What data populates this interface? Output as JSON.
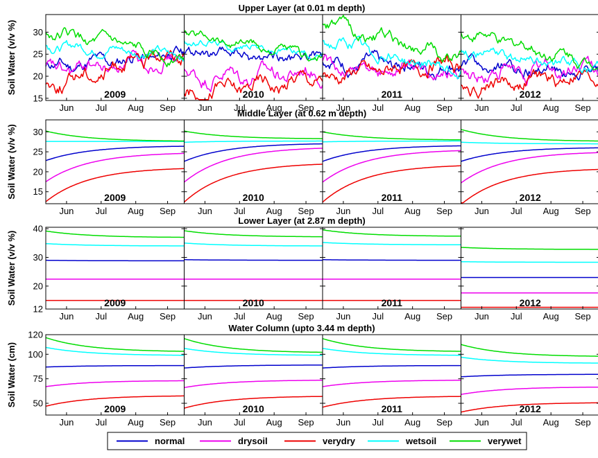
{
  "chart_data": [
    {
      "type": "line",
      "title": "Upper Layer (at 0.01 m depth)",
      "ylabel": "Soil Water (v/v %)",
      "ylim": [
        14.5,
        34
      ],
      "yticks": [
        15,
        20,
        25,
        30
      ],
      "months": [
        "Jun",
        "Jul",
        "Aug",
        "Sep"
      ],
      "panels": [
        {
          "year": "2009",
          "series": [
            {
              "name": "normal",
              "start": 22,
              "end": 25,
              "noise": 2.0
            },
            {
              "name": "drysoil",
              "start": 21,
              "end": 24,
              "noise": 2.2
            },
            {
              "name": "verydry",
              "start": 18,
              "end": 26,
              "noise": 2.5
            },
            {
              "name": "wetsoil",
              "start": 27,
              "end": 25,
              "noise": 1.5
            },
            {
              "name": "verywet",
              "start": 30,
              "end": 24,
              "noise": 1.8
            }
          ]
        },
        {
          "year": "2010",
          "series": [
            {
              "name": "normal",
              "start": 25,
              "end": 24,
              "noise": 1.8
            },
            {
              "name": "drysoil",
              "start": 20,
              "end": 21,
              "noise": 2.5
            },
            {
              "name": "verydry",
              "start": 16,
              "end": 20,
              "noise": 2.5
            },
            {
              "name": "wetsoil",
              "start": 28,
              "end": 25,
              "noise": 1.2
            },
            {
              "name": "verywet",
              "start": 30,
              "end": 24,
              "noise": 1.5
            }
          ]
        },
        {
          "year": "2011",
          "series": [
            {
              "name": "normal",
              "start": 23,
              "end": 22,
              "noise": 2.2
            },
            {
              "name": "drysoil",
              "start": 22,
              "end": 21,
              "noise": 2.2
            },
            {
              "name": "verydry",
              "start": 20,
              "end": 23,
              "noise": 2.3
            },
            {
              "name": "wetsoil",
              "start": 28,
              "end": 21,
              "noise": 2.0
            },
            {
              "name": "verywet",
              "start": 32,
              "end": 24,
              "noise": 2.0
            }
          ]
        },
        {
          "year": "2012",
          "series": [
            {
              "name": "normal",
              "start": 22,
              "end": 21,
              "noise": 2.0
            },
            {
              "name": "drysoil",
              "start": 20,
              "end": 22,
              "noise": 2.5
            },
            {
              "name": "verydry",
              "start": 18,
              "end": 20,
              "noise": 2.3
            },
            {
              "name": "wetsoil",
              "start": 26,
              "end": 22,
              "noise": 1.6
            },
            {
              "name": "verywet",
              "start": 30,
              "end": 23,
              "noise": 1.8
            }
          ]
        }
      ]
    },
    {
      "type": "line",
      "title": "Middle Layer (at 0.62 m depth)",
      "ylabel": "Soil Water (v/v %)",
      "ylim": [
        12,
        33
      ],
      "yticks": [
        15,
        20,
        25,
        30
      ],
      "months": [
        "Jun",
        "Jul",
        "Aug",
        "Sep"
      ],
      "panels": [
        {
          "year": "2009",
          "series": [
            {
              "name": "normal",
              "start": 22.8,
              "end": 26.4,
              "noise": 0
            },
            {
              "name": "drysoil",
              "start": 17.5,
              "end": 24.6,
              "noise": 0
            },
            {
              "name": "verydry",
              "start": 12.5,
              "end": 20.8,
              "noise": 0
            },
            {
              "name": "wetsoil",
              "start": 27.6,
              "end": 27.6,
              "noise": 0
            },
            {
              "name": "verywet",
              "start": 30.2,
              "end": 27.7,
              "noise": 0
            }
          ]
        },
        {
          "year": "2010",
          "series": [
            {
              "name": "normal",
              "start": 22.6,
              "end": 27.0,
              "noise": 0
            },
            {
              "name": "drysoil",
              "start": 17.4,
              "end": 25.9,
              "noise": 0
            },
            {
              "name": "verydry",
              "start": 12.4,
              "end": 21.9,
              "noise": 0
            },
            {
              "name": "wetsoil",
              "start": 27.4,
              "end": 27.7,
              "noise": 0
            },
            {
              "name": "verywet",
              "start": 30.2,
              "end": 28.3,
              "noise": 0
            }
          ]
        },
        {
          "year": "2011",
          "series": [
            {
              "name": "normal",
              "start": 22.6,
              "end": 26.5,
              "noise": 0
            },
            {
              "name": "drysoil",
              "start": 17.4,
              "end": 25.3,
              "noise": 0
            },
            {
              "name": "verydry",
              "start": 12.4,
              "end": 21.5,
              "noise": 0
            },
            {
              "name": "wetsoil",
              "start": 27.5,
              "end": 27.7,
              "noise": 0
            },
            {
              "name": "verywet",
              "start": 30.0,
              "end": 28.0,
              "noise": 0
            }
          ]
        },
        {
          "year": "2012",
          "series": [
            {
              "name": "normal",
              "start": 22.6,
              "end": 26.0,
              "noise": 0
            },
            {
              "name": "drysoil",
              "start": 17.2,
              "end": 24.8,
              "noise": 0
            },
            {
              "name": "verydry",
              "start": 11.8,
              "end": 20.6,
              "noise": 0
            },
            {
              "name": "wetsoil",
              "start": 27.4,
              "end": 27.0,
              "noise": 0
            },
            {
              "name": "verywet",
              "start": 30.6,
              "end": 27.7,
              "noise": 0
            }
          ]
        }
      ]
    },
    {
      "type": "line",
      "title": "Lower Layer (at 2.87 m depth)",
      "ylabel": "Soil Water (v/v %)",
      "ylim": [
        12,
        40.5
      ],
      "yticks": [
        12,
        20,
        30,
        40
      ],
      "months": [
        "Jun",
        "Jul",
        "Aug",
        "Sep"
      ],
      "panels": [
        {
          "year": "2009",
          "series": [
            {
              "name": "normal",
              "start": 29.0,
              "end": 28.8,
              "noise": 0
            },
            {
              "name": "drysoil",
              "start": 22.4,
              "end": 22.4,
              "noise": 0
            },
            {
              "name": "verydry",
              "start": 15.0,
              "end": 15.0,
              "noise": 0
            },
            {
              "name": "wetsoil",
              "start": 34.8,
              "end": 34.0,
              "noise": 0
            },
            {
              "name": "verywet",
              "start": 39.2,
              "end": 37.0,
              "noise": 0
            }
          ]
        },
        {
          "year": "2010",
          "series": [
            {
              "name": "normal",
              "start": 29.2,
              "end": 29.0,
              "noise": 0
            },
            {
              "name": "drysoil",
              "start": 22.4,
              "end": 22.4,
              "noise": 0
            },
            {
              "name": "verydry",
              "start": 15.0,
              "end": 15.0,
              "noise": 0
            },
            {
              "name": "wetsoil",
              "start": 35.0,
              "end": 34.0,
              "noise": 0
            },
            {
              "name": "verywet",
              "start": 39.3,
              "end": 37.2,
              "noise": 0
            }
          ]
        },
        {
          "year": "2011",
          "series": [
            {
              "name": "normal",
              "start": 29.2,
              "end": 29.0,
              "noise": 0
            },
            {
              "name": "drysoil",
              "start": 22.4,
              "end": 22.4,
              "noise": 0
            },
            {
              "name": "verydry",
              "start": 15.0,
              "end": 15.0,
              "noise": 0
            },
            {
              "name": "wetsoil",
              "start": 35.2,
              "end": 34.4,
              "noise": 0
            },
            {
              "name": "verywet",
              "start": 39.6,
              "end": 37.4,
              "noise": 0
            }
          ]
        },
        {
          "year": "2012",
          "series": [
            {
              "name": "normal",
              "start": 23.0,
              "end": 23.0,
              "noise": 0
            },
            {
              "name": "drysoil",
              "start": 17.6,
              "end": 17.6,
              "noise": 0
            },
            {
              "name": "verydry",
              "start": 12.6,
              "end": 12.6,
              "noise": 0
            },
            {
              "name": "wetsoil",
              "start": 28.5,
              "end": 28.3,
              "noise": 0
            },
            {
              "name": "verywet",
              "start": 33.5,
              "end": 32.8,
              "noise": 0
            }
          ]
        }
      ]
    },
    {
      "type": "line",
      "title": "Water Column (upto 3.44 m depth)",
      "ylabel": "Soil Water (cm)",
      "ylim": [
        38,
        120
      ],
      "yticks": [
        50,
        75,
        100,
        120
      ],
      "months": [
        "Jun",
        "Jul",
        "Aug",
        "Sep"
      ],
      "panels": [
        {
          "year": "2009",
          "series": [
            {
              "name": "normal",
              "start": 87,
              "end": 88.5,
              "noise": 0
            },
            {
              "name": "drysoil",
              "start": 67,
              "end": 73,
              "noise": 0
            },
            {
              "name": "verydry",
              "start": 47,
              "end": 57.5,
              "noise": 0
            },
            {
              "name": "wetsoil",
              "start": 107,
              "end": 99,
              "noise": 0
            },
            {
              "name": "verywet",
              "start": 117,
              "end": 103,
              "noise": 0
            }
          ]
        },
        {
          "year": "2010",
          "series": [
            {
              "name": "normal",
              "start": 86,
              "end": 89,
              "noise": 0
            },
            {
              "name": "drysoil",
              "start": 66,
              "end": 73.5,
              "noise": 0
            },
            {
              "name": "verydry",
              "start": 45,
              "end": 57,
              "noise": 0
            },
            {
              "name": "wetsoil",
              "start": 106,
              "end": 99,
              "noise": 0
            },
            {
              "name": "verywet",
              "start": 116,
              "end": 102,
              "noise": 0
            }
          ]
        },
        {
          "year": "2011",
          "series": [
            {
              "name": "normal",
              "start": 86,
              "end": 88.5,
              "noise": 0
            },
            {
              "name": "drysoil",
              "start": 67,
              "end": 73.5,
              "noise": 0
            },
            {
              "name": "verydry",
              "start": 46,
              "end": 57,
              "noise": 0
            },
            {
              "name": "wetsoil",
              "start": 106,
              "end": 99,
              "noise": 0
            },
            {
              "name": "verywet",
              "start": 116,
              "end": 103,
              "noise": 0
            }
          ]
        },
        {
          "year": "2012",
          "series": [
            {
              "name": "normal",
              "start": 77,
              "end": 79.5,
              "noise": 0
            },
            {
              "name": "drysoil",
              "start": 59,
              "end": 66.5,
              "noise": 0
            },
            {
              "name": "verydry",
              "start": 41,
              "end": 50.5,
              "noise": 0
            },
            {
              "name": "wetsoil",
              "start": 97,
              "end": 91,
              "noise": 0
            },
            {
              "name": "verywet",
              "start": 110,
              "end": 98,
              "noise": 0
            }
          ]
        }
      ]
    }
  ],
  "legend": {
    "placement": "bottom",
    "items": [
      {
        "name": "normal",
        "color": "#0000cd"
      },
      {
        "name": "drysoil",
        "color": "#ee00ee"
      },
      {
        "name": "verydry",
        "color": "#ee0000"
      },
      {
        "name": "wetsoil",
        "color": "#00ffff"
      },
      {
        "name": "verywet",
        "color": "#00dd00"
      }
    ]
  }
}
